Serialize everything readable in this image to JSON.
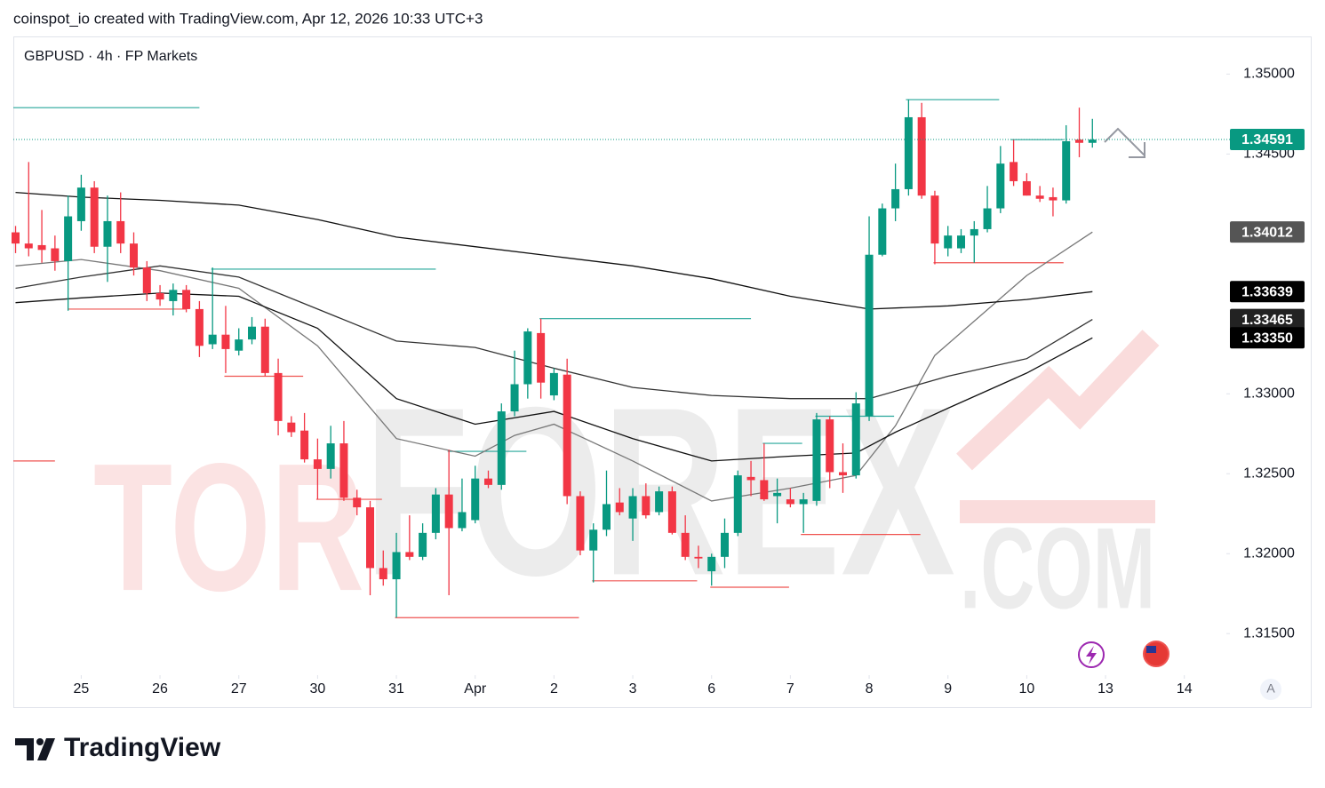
{
  "header": {
    "attribution": "coinspot_io created with TradingView.com, Apr 12, 2026 10:33 UTC+3"
  },
  "footer": {
    "brand": "TradingView"
  },
  "chart_data": {
    "type": "candlestick",
    "title": "GBPUSD · 4h · FP Markets",
    "watermark": [
      "TOR",
      "FOREX",
      ".COM"
    ],
    "up_color": "#089981",
    "down_color": "#f23645",
    "xlim": [
      -0.17,
      92.2
    ],
    "ylim": [
      1.3124,
      1.3523
    ],
    "grid": false,
    "xticks": [
      {
        "value": 5,
        "label": "25"
      },
      {
        "value": 11,
        "label": "26"
      },
      {
        "value": 17,
        "label": "27"
      },
      {
        "value": 23,
        "label": "30"
      },
      {
        "value": 29,
        "label": "31"
      },
      {
        "value": 35,
        "label": "Apr"
      },
      {
        "value": 41,
        "label": "2"
      },
      {
        "value": 47,
        "label": "3"
      },
      {
        "value": 53,
        "label": "6"
      },
      {
        "value": 59,
        "label": "7"
      },
      {
        "value": 65,
        "label": "8"
      },
      {
        "value": 71,
        "label": "9"
      },
      {
        "value": 77,
        "label": "10"
      },
      {
        "value": 83,
        "label": "13"
      },
      {
        "value": 89,
        "label": "14"
      }
    ],
    "yticks": [
      {
        "value": 1.35,
        "label": "1.35000"
      },
      {
        "value": 1.345,
        "label": "1.34500"
      },
      {
        "value": 1.33,
        "label": "1.33000"
      },
      {
        "value": 1.325,
        "label": "1.32500"
      },
      {
        "value": 1.32,
        "label": "1.32000"
      },
      {
        "value": 1.315,
        "label": "1.31500"
      }
    ],
    "categories": [
      null,
      null,
      null,
      null,
      null,
      null,
      null,
      null,
      null,
      null,
      null,
      null,
      null,
      null,
      null,
      null,
      null,
      null,
      null,
      null,
      null,
      null,
      null,
      null,
      null,
      null,
      null,
      null,
      null,
      null,
      null,
      null,
      null,
      null,
      null,
      null,
      null,
      null,
      null,
      null,
      null,
      null,
      null,
      null,
      null,
      null,
      null,
      null,
      null,
      null,
      null,
      null,
      null,
      null,
      null,
      null,
      null,
      null,
      null,
      null,
      null,
      null,
      null,
      null,
      null,
      null,
      null,
      null,
      null,
      null,
      null,
      null,
      null,
      null,
      null,
      null,
      null,
      null,
      null,
      null,
      null,
      null,
      null
    ],
    "open": [
      1.3401,
      1.3394,
      1.3393,
      1.3391,
      1.3383,
      1.3408,
      1.3429,
      1.3392,
      1.3408,
      1.3394,
      1.3379,
      1.3363,
      1.3358,
      1.3365,
      1.3353,
      1.3331,
      1.3337,
      1.3327,
      1.3334,
      1.3342,
      1.3313,
      1.3282,
      1.3277,
      1.3259,
      1.3253,
      1.3269,
      1.3235,
      1.3229,
      1.3191,
      1.3184,
      1.3201,
      1.3198,
      1.3213,
      1.3237,
      1.3216,
      1.3221,
      1.3247,
      1.3243,
      1.3289,
      1.3306,
      1.3338,
      1.3299,
      1.3312,
      1.3236,
      1.3202,
      1.3215,
      1.3232,
      1.3222,
      1.3236,
      1.3226,
      1.3239,
      1.3213,
      1.3198,
      1.3189,
      1.3198,
      1.3213,
      1.3248,
      1.3246,
      1.3236,
      1.3234,
      1.3231,
      1.3233,
      1.3284,
      1.3251,
      1.3249,
      1.3286,
      1.3387,
      1.3416,
      1.3428,
      1.3473,
      1.3424,
      1.3391,
      1.3391,
      1.3399,
      1.3403,
      1.3416,
      1.3445,
      1.3433,
      1.3424,
      1.3423,
      1.3421,
      1.3459,
      1.3457
    ],
    "high": [
      1.3405,
      1.3445,
      1.3415,
      1.3399,
      1.3424,
      1.3437,
      1.3433,
      1.3424,
      1.3426,
      1.3401,
      1.3383,
      1.3368,
      1.3369,
      1.3368,
      1.3358,
      1.3379,
      1.3355,
      1.3341,
      1.3348,
      1.3347,
      1.3322,
      1.3286,
      1.3288,
      1.3272,
      1.328,
      1.3283,
      1.324,
      1.3233,
      1.3202,
      1.3213,
      1.3224,
      1.3219,
      1.3241,
      1.3265,
      1.3247,
      1.3255,
      1.3252,
      1.3294,
      1.3327,
      1.3341,
      1.3347,
      1.3316,
      1.3322,
      1.3239,
      1.3219,
      1.3252,
      1.3241,
      1.3241,
      1.3244,
      1.3242,
      1.3242,
      1.3224,
      1.3205,
      1.32,
      1.3222,
      1.3252,
      1.3258,
      1.3269,
      1.3247,
      1.3241,
      1.3238,
      1.3288,
      1.3286,
      1.3269,
      1.3301,
      1.3411,
      1.3419,
      1.3444,
      1.3484,
      1.3482,
      1.3427,
      1.3405,
      1.3403,
      1.3408,
      1.343,
      1.3455,
      1.3459,
      1.3438,
      1.343,
      1.3429,
      1.3468,
      1.3479,
      1.3472
    ],
    "low": [
      1.3388,
      1.3386,
      1.3382,
      1.3377,
      1.3352,
      1.3402,
      1.3388,
      1.337,
      1.3388,
      1.3374,
      1.3358,
      1.3355,
      1.3349,
      1.3351,
      1.3323,
      1.3328,
      1.3313,
      1.3324,
      1.3331,
      1.3311,
      1.3274,
      1.3273,
      1.3257,
      1.3234,
      1.3247,
      1.3233,
      1.3224,
      1.3174,
      1.318,
      1.316,
      1.3196,
      1.3196,
      1.3209,
      1.3174,
      1.3214,
      1.3219,
      1.3241,
      1.324,
      1.3286,
      1.3297,
      1.3297,
      1.3296,
      1.3231,
      1.3199,
      1.3182,
      1.3211,
      1.3224,
      1.3208,
      1.3222,
      1.3224,
      1.3212,
      1.3196,
      1.3191,
      1.318,
      1.3191,
      1.3211,
      1.3236,
      1.3233,
      1.3219,
      1.3229,
      1.3213,
      1.323,
      1.3241,
      1.3238,
      1.3247,
      1.3283,
      1.3386,
      1.3408,
      1.3424,
      1.3422,
      1.3381,
      1.3386,
      1.3388,
      1.3382,
      1.3401,
      1.3413,
      1.343,
      1.3424,
      1.342,
      1.3411,
      1.3419,
      1.3448,
      1.3454
    ],
    "close": [
      1.3394,
      1.3391,
      1.339,
      1.3383,
      1.3411,
      1.3429,
      1.3392,
      1.3408,
      1.3394,
      1.3379,
      1.3363,
      1.3359,
      1.3365,
      1.3353,
      1.333,
      1.3337,
      1.3328,
      1.3334,
      1.3342,
      1.3313,
      1.3283,
      1.3276,
      1.3259,
      1.3253,
      1.3269,
      1.3235,
      1.3229,
      1.3191,
      1.3184,
      1.3201,
      1.3198,
      1.3213,
      1.3237,
      1.3216,
      1.3226,
      1.3247,
      1.3243,
      1.3289,
      1.3306,
      1.3339,
      1.3307,
      1.3313,
      1.3236,
      1.3202,
      1.3215,
      1.3231,
      1.3226,
      1.3236,
      1.3224,
      1.3239,
      1.3213,
      1.3198,
      1.3197,
      1.3198,
      1.3213,
      1.3249,
      1.3246,
      1.3234,
      1.3238,
      1.3231,
      1.3234,
      1.3284,
      1.3251,
      1.3249,
      1.3294,
      1.3387,
      1.3416,
      1.3428,
      1.3473,
      1.3424,
      1.3394,
      1.3399,
      1.3399,
      1.3403,
      1.3416,
      1.3444,
      1.3433,
      1.3424,
      1.3422,
      1.3421,
      1.3458,
      1.3457,
      1.3459
    ],
    "ma": [
      {
        "color": "#777777",
        "x": [
          0,
          5,
          11,
          17,
          23,
          29,
          35,
          38,
          41,
          47,
          53,
          59,
          64,
          67,
          70,
          77,
          82
        ],
        "values": [
          1.338,
          1.3384,
          1.3377,
          1.3366,
          1.333,
          1.3272,
          1.3261,
          1.3274,
          1.3281,
          1.3258,
          1.3233,
          1.3241,
          1.3249,
          1.328,
          1.3324,
          1.3374,
          1.34012
        ]
      },
      {
        "color": "#111111",
        "x": [
          0,
          5,
          11,
          17,
          23,
          29,
          35,
          41,
          47,
          53,
          59,
          65,
          71,
          77,
          82
        ],
        "values": [
          1.3426,
          1.3423,
          1.3421,
          1.3418,
          1.3409,
          1.3398,
          1.3392,
          1.3386,
          1.338,
          1.3372,
          1.3361,
          1.3353,
          1.3355,
          1.3359,
          1.33639
        ]
      },
      {
        "color": "#333333",
        "x": [
          0,
          5,
          11,
          17,
          23,
          29,
          35,
          41,
          47,
          53,
          59,
          65,
          71,
          77,
          82
        ],
        "values": [
          1.3366,
          1.3373,
          1.338,
          1.3373,
          1.3353,
          1.3333,
          1.3329,
          1.3316,
          1.3304,
          1.3299,
          1.3297,
          1.3297,
          1.3311,
          1.3322,
          1.33465
        ]
      },
      {
        "color": "#111111",
        "x": [
          0,
          5,
          11,
          17,
          23,
          29,
          35,
          41,
          47,
          53,
          59,
          64,
          67,
          71,
          77,
          82
        ],
        "values": [
          1.3357,
          1.336,
          1.3363,
          1.3361,
          1.3341,
          1.3297,
          1.3281,
          1.3289,
          1.3272,
          1.3258,
          1.3261,
          1.3263,
          1.3276,
          1.3291,
          1.3313,
          1.3335
        ]
      }
    ],
    "levels": [
      {
        "price": 1.3479,
        "from": -0.17,
        "to": 14.0,
        "color": "#26a69a"
      },
      {
        "price": 1.3378,
        "from": 14.9,
        "to": 32.0,
        "color": "#26a69a"
      },
      {
        "price": 1.3347,
        "from": 39.9,
        "to": 56.0,
        "color": "#26a69a"
      },
      {
        "price": 1.3264,
        "from": 32.9,
        "to": 38.9,
        "color": "#26a69a"
      },
      {
        "price": 1.3269,
        "from": 56.9,
        "to": 59.9,
        "color": "#26a69a"
      },
      {
        "price": 1.3286,
        "from": 60.9,
        "to": 66.9,
        "color": "#26a69a"
      },
      {
        "price": 1.3484,
        "from": 67.8,
        "to": 74.9,
        "color": "#26a69a"
      },
      {
        "price": 1.3459,
        "from": 75.8,
        "to": 79.8,
        "color": "#26a69a"
      },
      {
        "price": 1.3353,
        "from": 4.0,
        "to": 13.0,
        "color": "#ef5350"
      },
      {
        "price": 1.3311,
        "from": 15.9,
        "to": 21.9,
        "color": "#ef5350"
      },
      {
        "price": 1.3234,
        "from": 22.9,
        "to": 27.9,
        "color": "#ef5350"
      },
      {
        "price": 1.3258,
        "from": -0.17,
        "to": 3.0,
        "color": "#ef5350"
      },
      {
        "price": 1.316,
        "from": 28.9,
        "to": 42.9,
        "color": "#ef5350"
      },
      {
        "price": 1.3183,
        "from": 43.9,
        "to": 51.9,
        "color": "#ef5350"
      },
      {
        "price": 1.3179,
        "from": 52.9,
        "to": 58.9,
        "color": "#ef5350"
      },
      {
        "price": 1.3212,
        "from": 59.8,
        "to": 68.9,
        "color": "#ef5350"
      },
      {
        "price": 1.3382,
        "from": 69.9,
        "to": 79.8,
        "color": "#ef5350"
      }
    ],
    "current_price": {
      "value": 1.34591,
      "label": "1.34591",
      "color": "#089981"
    },
    "price_labels": [
      {
        "value": 1.34012,
        "label": "1.34012",
        "color": "#555555"
      },
      {
        "value": 1.33639,
        "label": "1.33639",
        "color": "#000000"
      },
      {
        "value": 1.33465,
        "label": "1.33465",
        "color": "#222222"
      },
      {
        "value": 1.3335,
        "label": "1.33350",
        "color": "#000000"
      }
    ]
  }
}
